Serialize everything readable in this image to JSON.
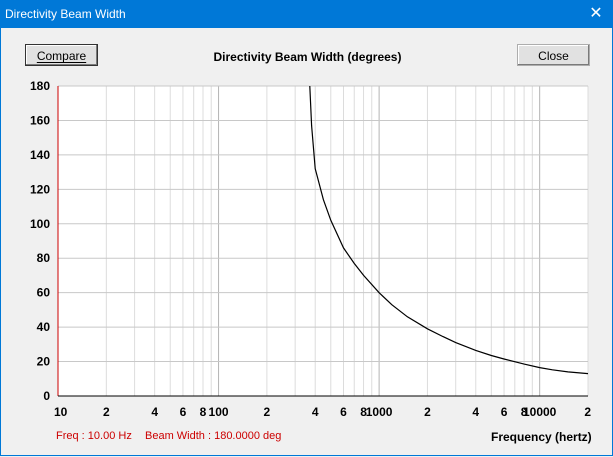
{
  "window": {
    "title": "Directivity Beam Width",
    "close_glyph": "✕"
  },
  "buttons": {
    "compare": "Compare",
    "close": "Close"
  },
  "chart_title": "Directivity Beam Width (degrees)",
  "status": {
    "freq": "Freq : 10.00 Hz",
    "beam": "Beam Width : 180.0000 deg"
  },
  "x_axis_label": "Frequency (hertz)",
  "colors": {
    "titlebar": "#0078d7",
    "status_text": "#cc0000",
    "curve": "#000000",
    "grid": "#c8c8c8"
  },
  "chart_data": {
    "type": "line",
    "title": "Directivity Beam Width (degrees)",
    "xlabel": "Frequency (hertz)",
    "ylabel": "",
    "xscale": "log",
    "xlim": [
      10,
      20000
    ],
    "ylim": [
      0,
      180
    ],
    "y_ticks": [
      "0",
      "20",
      "40",
      "60",
      "80",
      "100",
      "120",
      "140",
      "160",
      "180"
    ],
    "x_ticks": [
      {
        "value": 10,
        "label": "10"
      },
      {
        "value": 20,
        "label": "2"
      },
      {
        "value": 40,
        "label": "4"
      },
      {
        "value": 60,
        "label": "6"
      },
      {
        "value": 80,
        "label": "8"
      },
      {
        "value": 100,
        "label": "100"
      },
      {
        "value": 200,
        "label": "2"
      },
      {
        "value": 400,
        "label": "4"
      },
      {
        "value": 600,
        "label": "6"
      },
      {
        "value": 800,
        "label": "8"
      },
      {
        "value": 1000,
        "label": "1000"
      },
      {
        "value": 2000,
        "label": "2"
      },
      {
        "value": 4000,
        "label": "4"
      },
      {
        "value": 6000,
        "label": "6"
      },
      {
        "value": 8000,
        "label": "8"
      },
      {
        "value": 10000,
        "label": "10000"
      },
      {
        "value": 20000,
        "label": "2"
      }
    ],
    "series": [
      {
        "name": "Beam Width",
        "x": [
          370,
          380,
          400,
          450,
          500,
          600,
          700,
          800,
          1000,
          1200,
          1500,
          2000,
          2500,
          3000,
          4000,
          5000,
          6000,
          8000,
          10000,
          12000,
          15000,
          20000
        ],
        "y": [
          180,
          157,
          132,
          114,
          102,
          86,
          77,
          70,
          60,
          53,
          46,
          39,
          34.5,
          31,
          26.5,
          23.5,
          21.5,
          18.5,
          16.5,
          15.2,
          14.0,
          13.0
        ]
      }
    ]
  }
}
